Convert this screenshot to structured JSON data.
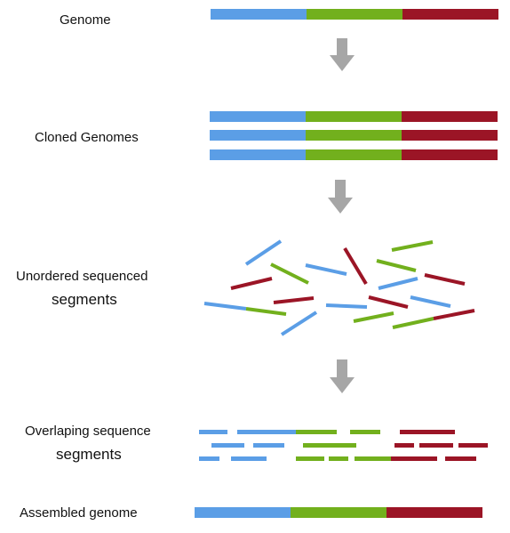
{
  "colors": {
    "blue": "#5b9ee6",
    "green": "#72b01d",
    "red": "#9b1526",
    "arrow": "#a6a6a6"
  },
  "stages": {
    "genome": {
      "label": "Genome"
    },
    "cloned": {
      "label": "Cloned Genomes"
    },
    "unordered": {
      "label_line1": "Unordered sequenced",
      "label_line2": "segments"
    },
    "overlap": {
      "label_line1": "Overlaping sequence",
      "label_line2": "segments"
    },
    "assembled": {
      "label": "Assembled genome"
    }
  },
  "icons": [
    "down-arrow-icon"
  ]
}
